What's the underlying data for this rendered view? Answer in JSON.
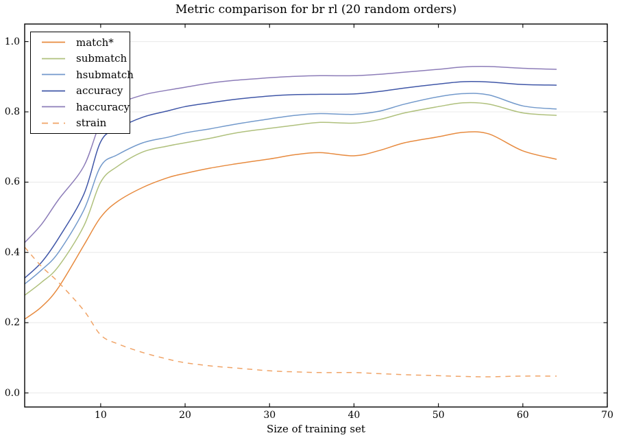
{
  "figure": {
    "title": "Metric comparison for br rl (20 random orders)",
    "xlabel": "Size of training set"
  },
  "chart_data": {
    "type": "line",
    "title": "Metric comparison for br rl (20 random orders)",
    "xlabel": "Size of training set",
    "ylabel": "",
    "xlim": [
      1,
      70
    ],
    "ylim": [
      -0.04,
      1.05
    ],
    "xticks": [
      10,
      20,
      30,
      40,
      50,
      60,
      70
    ],
    "yticks": [
      0.0,
      0.2,
      0.4,
      0.6,
      0.8,
      1.0
    ],
    "ytick_labels": [
      "0.0",
      "0.2",
      "0.4",
      "0.6",
      "0.8",
      "1.0"
    ],
    "grid": "horizontal-only",
    "grid_color": "#e8e8e8",
    "axis_color": "#000000",
    "legend_position": "upper-left",
    "x": [
      1,
      3,
      5,
      8,
      10,
      12,
      15,
      18,
      20,
      23,
      26,
      30,
      33,
      36,
      40,
      43,
      46,
      50,
      53,
      56,
      60,
      64
    ],
    "series": [
      {
        "name": "match*",
        "color": "#e78a3e",
        "style": "solid",
        "values": [
          0.21,
          0.245,
          0.3,
          0.42,
          0.5,
          0.545,
          0.585,
          0.613,
          0.625,
          0.64,
          0.652,
          0.666,
          0.678,
          0.684,
          0.675,
          0.69,
          0.712,
          0.729,
          0.742,
          0.737,
          0.689,
          0.665
        ]
      },
      {
        "name": "submatch",
        "color": "#afc07c",
        "style": "solid",
        "values": [
          0.278,
          0.315,
          0.36,
          0.475,
          0.6,
          0.645,
          0.686,
          0.703,
          0.712,
          0.725,
          0.74,
          0.753,
          0.762,
          0.77,
          0.768,
          0.778,
          0.797,
          0.815,
          0.826,
          0.822,
          0.797,
          0.79
        ]
      },
      {
        "name": "hsubmatch",
        "color": "#7299cb",
        "style": "solid",
        "values": [
          0.31,
          0.35,
          0.4,
          0.52,
          0.645,
          0.678,
          0.712,
          0.728,
          0.74,
          0.752,
          0.765,
          0.78,
          0.79,
          0.795,
          0.793,
          0.802,
          0.822,
          0.843,
          0.852,
          0.848,
          0.817,
          0.808
        ]
      },
      {
        "name": "accuracy",
        "color": "#3f56a7",
        "style": "solid",
        "values": [
          0.327,
          0.372,
          0.44,
          0.565,
          0.715,
          0.752,
          0.785,
          0.803,
          0.815,
          0.826,
          0.836,
          0.845,
          0.849,
          0.85,
          0.851,
          0.858,
          0.868,
          0.879,
          0.886,
          0.885,
          0.878,
          0.876
        ]
      },
      {
        "name": "haccuracy",
        "color": "#8c7cb8",
        "style": "solid",
        "values": [
          0.428,
          0.48,
          0.55,
          0.645,
          0.77,
          0.82,
          0.848,
          0.862,
          0.87,
          0.882,
          0.89,
          0.897,
          0.901,
          0.903,
          0.903,
          0.907,
          0.913,
          0.921,
          0.928,
          0.929,
          0.924,
          0.921
        ]
      },
      {
        "name": "strain",
        "color": "#f0a366",
        "style": "dashed",
        "values": [
          0.415,
          0.36,
          0.315,
          0.235,
          0.165,
          0.14,
          0.115,
          0.096,
          0.086,
          0.077,
          0.071,
          0.063,
          0.06,
          0.058,
          0.058,
          0.055,
          0.052,
          0.049,
          0.047,
          0.046,
          0.048,
          0.048
        ]
      }
    ]
  }
}
